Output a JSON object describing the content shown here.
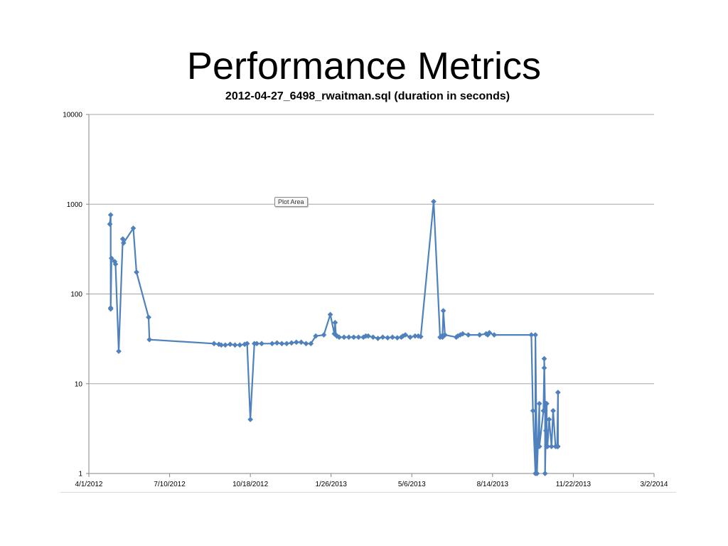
{
  "slide": {
    "title": "Performance Metrics"
  },
  "tooltip": {
    "label": "Plot Area"
  },
  "chart_data": {
    "type": "line",
    "title": "2012-04-27_6498_rwaitman.sql (duration in seconds)",
    "xlabel": "",
    "ylabel": "",
    "y_scale": "log",
    "ylim": [
      1,
      10000
    ],
    "y_ticks": [
      1,
      10,
      100,
      1000,
      10000
    ],
    "y_tick_labels": [
      "1",
      "10",
      "100",
      "1000",
      "10000"
    ],
    "xlim": [
      "2012-04-01",
      "2014-03-02"
    ],
    "x_ticks": [
      "2012-04-01",
      "2012-07-10",
      "2012-10-18",
      "2013-01-26",
      "2013-05-06",
      "2013-08-14",
      "2013-11-22",
      "2014-03-02"
    ],
    "x_tick_labels": [
      "4/1/2012",
      "7/10/2012",
      "10/18/2012",
      "1/26/2013",
      "5/6/2013",
      "8/14/2013",
      "11/22/2013",
      "3/2/2014"
    ],
    "grid": {
      "horizontal": true,
      "vertical": false
    },
    "legend": "none",
    "marker": "diamond",
    "color": "#4f81bd",
    "series": [
      {
        "x": [
          "2012-04-27",
          "2012-04-28",
          "2012-04-28",
          "2012-04-28",
          "2012-04-29",
          "2012-05-03",
          "2012-05-04",
          "2012-05-08",
          "2012-05-13",
          "2012-05-14",
          "2012-05-26",
          "2012-05-30",
          "2012-06-14",
          "2012-06-15",
          "2012-09-03",
          "2012-09-09",
          "2012-09-12",
          "2012-09-17",
          "2012-09-23",
          "2012-09-29",
          "2012-10-05",
          "2012-10-11",
          "2012-10-14",
          "2012-10-18",
          "2012-10-23",
          "2012-10-26",
          "2012-11-01",
          "2012-11-14",
          "2012-11-20",
          "2012-11-26",
          "2012-12-02",
          "2012-12-08",
          "2012-12-14",
          "2012-12-20",
          "2012-12-26",
          "2013-01-01",
          "2013-01-07",
          "2013-01-17",
          "2013-01-25",
          "2013-01-30",
          "2013-01-31",
          "2013-02-01",
          "2013-02-02",
          "2013-02-05",
          "2013-02-11",
          "2013-02-17",
          "2013-02-23",
          "2013-03-01",
          "2013-03-07",
          "2013-03-10",
          "2013-03-13",
          "2013-03-19",
          "2013-03-25",
          "2013-03-31",
          "2013-04-06",
          "2013-04-12",
          "2013-04-18",
          "2013-04-23",
          "2013-04-25",
          "2013-04-28",
          "2013-05-04",
          "2013-05-10",
          "2013-05-14",
          "2013-05-17",
          "2013-06-02",
          "2013-06-10",
          "2013-06-12",
          "2013-06-13",
          "2013-06-14",
          "2013-06-16",
          "2013-06-30",
          "2013-07-02",
          "2013-07-05",
          "2013-07-08",
          "2013-07-15",
          "2013-07-29",
          "2013-08-06",
          "2013-08-08",
          "2013-08-10",
          "2013-08-16",
          "2013-10-01",
          "2013-10-03",
          "2013-10-06",
          "2013-10-06",
          "2013-10-08",
          "2013-10-11",
          "2013-10-11",
          "2013-10-16",
          "2013-10-17",
          "2013-10-17",
          "2013-10-18",
          "2013-10-18",
          "2013-10-19",
          "2013-10-19",
          "2013-10-20",
          "2013-10-20",
          "2013-10-21",
          "2013-10-23",
          "2013-10-26",
          "2013-10-28",
          "2013-10-31",
          "2013-11-02",
          "2013-11-03",
          "2013-11-03"
        ],
        "y": [
          600,
          760,
          70,
          68,
          250,
          230,
          215,
          23,
          410,
          370,
          540,
          175,
          55,
          31,
          28,
          27.5,
          27,
          27,
          27.5,
          27,
          27,
          27.5,
          28,
          4,
          28,
          28,
          28,
          28,
          28.5,
          28,
          28,
          28.5,
          29,
          29,
          28,
          28,
          34,
          35,
          59,
          36,
          48,
          35,
          34,
          33,
          33,
          33,
          33,
          33,
          33,
          34,
          34,
          33,
          32,
          33,
          32.5,
          33,
          32.5,
          33,
          34,
          35,
          33,
          34,
          34,
          33.5,
          1070,
          33,
          34,
          33,
          65,
          35,
          33,
          34,
          35,
          36,
          35,
          35,
          36,
          35,
          37,
          35,
          35,
          5,
          1,
          35,
          1,
          6,
          2,
          5,
          15,
          19,
          5,
          1,
          3,
          6,
          6,
          2,
          2,
          4,
          2,
          5,
          2,
          2,
          8,
          2
        ]
      }
    ]
  }
}
